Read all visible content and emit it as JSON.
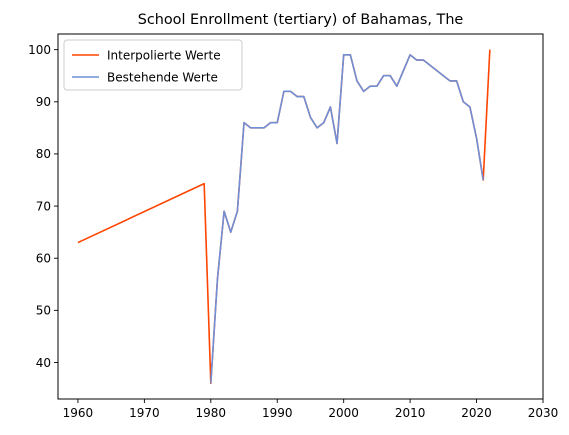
{
  "chart_data": {
    "type": "line",
    "title": "School Enrollment (tertiary) of Bahamas, The",
    "xlabel": "",
    "ylabel": "",
    "xlim": [
      1957,
      2030
    ],
    "ylim": [
      33,
      103
    ],
    "xticks": [
      1960,
      1970,
      1980,
      1990,
      2000,
      2010,
      2020,
      2030
    ],
    "yticks": [
      40,
      50,
      60,
      70,
      80,
      90,
      100
    ],
    "grid": false,
    "legend_position": "top-left",
    "series": [
      {
        "name": "Interpolierte Werte",
        "color": "#ff4500",
        "x": [
          1960,
          1979,
          1980,
          1981,
          1982,
          1983,
          1984,
          1985,
          1986,
          1987,
          1988,
          1989,
          1990,
          1991,
          1992,
          1993,
          1994,
          1995,
          1996,
          1997,
          1998,
          1999,
          2000,
          2001,
          2002,
          2003,
          2004,
          2005,
          2006,
          2007,
          2008,
          2009,
          2010,
          2011,
          2012,
          2013,
          2014,
          2015,
          2016,
          2017,
          2018,
          2019,
          2020,
          2021,
          2022
        ],
        "y": [
          63,
          74.3,
          36,
          56,
          69,
          65,
          69,
          86,
          85,
          85,
          85,
          86,
          86,
          92,
          92,
          91,
          91,
          87,
          85,
          86,
          89,
          82,
          99,
          99,
          94,
          92,
          93,
          93,
          95,
          95,
          93,
          96,
          99,
          98,
          98,
          97,
          96,
          95,
          94,
          94,
          90,
          89,
          83,
          75,
          100
        ]
      },
      {
        "name": "Bestehende Werte",
        "color": "#6f8fd8",
        "x": [
          1980,
          1981,
          1982,
          1983,
          1984,
          1985,
          1986,
          1987,
          1988,
          1989,
          1990,
          1991,
          1992,
          1993,
          1994,
          1995,
          1996,
          1997,
          1998,
          1999,
          2000,
          2001,
          2002,
          2003,
          2004,
          2005,
          2006,
          2007,
          2008,
          2009,
          2010,
          2011,
          2012,
          2013,
          2014,
          2015,
          2016,
          2017,
          2018,
          2019,
          2020,
          2021
        ],
        "y": [
          36,
          56,
          69,
          65,
          69,
          86,
          85,
          85,
          85,
          86,
          86,
          92,
          92,
          91,
          91,
          87,
          85,
          86,
          89,
          82,
          99,
          99,
          94,
          92,
          93,
          93,
          95,
          95,
          93,
          96,
          99,
          98,
          98,
          97,
          96,
          95,
          94,
          94,
          90,
          89,
          83,
          75
        ]
      }
    ]
  }
}
